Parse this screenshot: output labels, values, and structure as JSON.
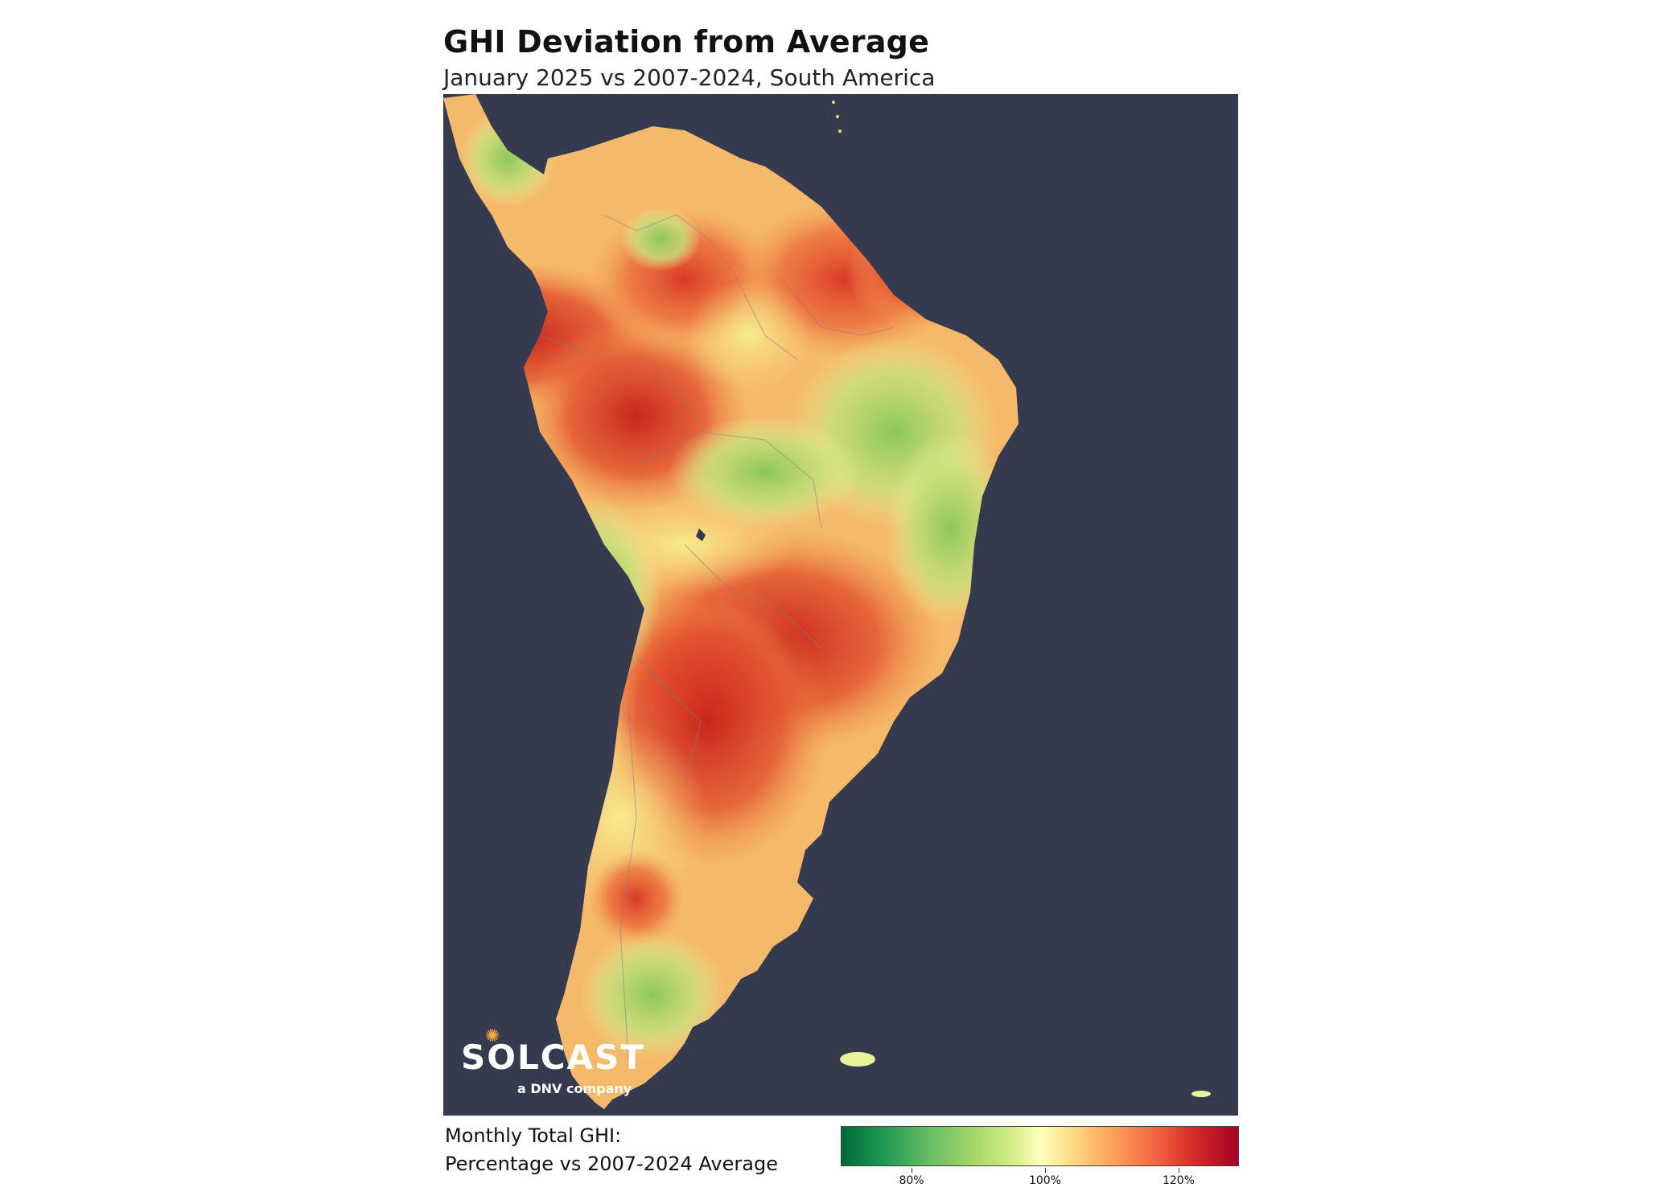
{
  "title": "GHI Deviation from Average",
  "subtitle": "January 2025 vs 2007-2024, South America",
  "logo": {
    "name": "SOLCAST",
    "tagline": "a DNV company"
  },
  "legend": {
    "title_line1": "Monthly Total GHI:",
    "title_line2": "Percentage vs 2007-2024 Average",
    "ticks": [
      "80%",
      "100%",
      "120%"
    ]
  },
  "colors": {
    "ocean": "#363a4f",
    "below_average": "#1a9850",
    "average": "#ffffbf",
    "above_average": "#d73027"
  }
}
